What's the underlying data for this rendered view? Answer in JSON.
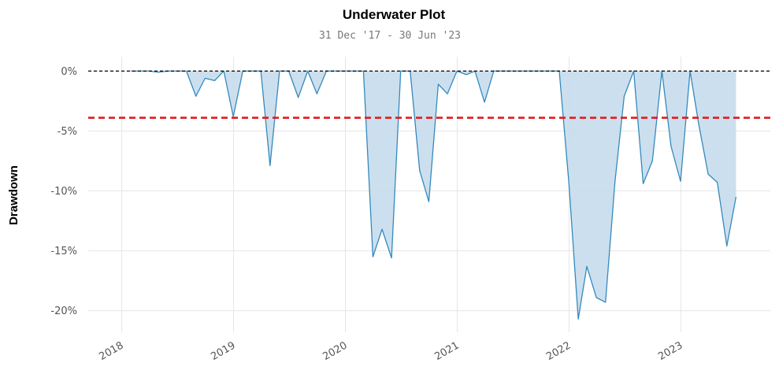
{
  "chart_data": {
    "type": "area",
    "title": "Underwater Plot",
    "subtitle": "31 Dec '17 - 30 Jun '23",
    "xlabel": "",
    "ylabel": "Drawdown",
    "ylim": [
      -21.8,
      1.2
    ],
    "xlim": [
      2017.7,
      2023.8
    ],
    "yticks": [
      0,
      -5,
      -10,
      -15,
      -20
    ],
    "ytick_labels": [
      "0%",
      "-5%",
      "-10%",
      "-15%",
      "-20%"
    ],
    "xticks": [
      2018,
      2019,
      2020,
      2021,
      2022,
      2023
    ],
    "xtick_labels": [
      "2018",
      "2019",
      "2020",
      "2021",
      "2022",
      "2023"
    ],
    "grid": true,
    "reference_lines": [
      {
        "y": 0,
        "style": "dashed",
        "color": "#000000"
      },
      {
        "y": -3.9,
        "style": "dashed",
        "color": "#e41a1c"
      }
    ],
    "colors": {
      "line": "#348abd",
      "fill": "#c6dcec"
    },
    "series": [
      {
        "x": [
          "2018-01-31",
          "2018-02-28",
          "2018-03-31",
          "2018-04-30",
          "2018-05-31",
          "2018-06-30",
          "2018-07-31",
          "2018-08-31",
          "2018-09-30",
          "2018-10-31",
          "2018-11-30",
          "2018-12-31",
          "2019-01-31",
          "2019-02-28",
          "2019-03-31",
          "2019-04-30",
          "2019-05-31",
          "2019-06-30",
          "2019-07-31",
          "2019-08-31",
          "2019-09-30",
          "2019-10-31",
          "2019-11-30",
          "2019-12-31",
          "2020-01-31",
          "2020-02-29",
          "2020-03-31",
          "2020-04-30",
          "2020-05-31",
          "2020-06-30",
          "2020-07-31",
          "2020-08-31",
          "2020-09-30",
          "2020-10-31",
          "2020-11-30",
          "2020-12-31",
          "2021-01-31",
          "2021-02-28",
          "2021-03-31",
          "2021-04-30",
          "2021-05-31",
          "2021-06-30",
          "2021-07-31",
          "2021-08-31",
          "2021-09-30",
          "2021-10-31",
          "2021-11-30",
          "2021-12-31",
          "2022-01-31",
          "2022-02-28",
          "2022-03-31",
          "2022-04-30",
          "2022-05-31",
          "2022-06-30",
          "2022-07-31",
          "2022-08-31",
          "2022-09-30",
          "2022-10-31",
          "2022-11-30",
          "2022-12-31",
          "2023-01-31",
          "2023-02-28",
          "2023-03-31",
          "2023-04-30",
          "2023-05-31",
          "2023-06-30"
        ],
        "values": [
          0,
          0,
          0,
          -0.1,
          0,
          0,
          0,
          -2.1,
          -0.6,
          -0.8,
          0,
          -3.8,
          0,
          0,
          0,
          -7.9,
          0,
          0,
          -2.2,
          0,
          -1.9,
          0,
          0,
          0,
          0,
          0,
          -15.5,
          -13.2,
          -15.6,
          0,
          0,
          -8.3,
          -10.9,
          -1.1,
          -1.9,
          0,
          -0.3,
          0,
          -2.6,
          0,
          0,
          0,
          0,
          0,
          0,
          0,
          0,
          -9.2,
          -20.7,
          -16.3,
          -18.9,
          -19.3,
          -9.2,
          -2.1,
          0,
          -9.4,
          -7.5,
          0,
          -6.3,
          -9.2,
          0,
          -4.4,
          -8.6,
          -9.3,
          -14.6,
          -10.5
        ]
      }
    ]
  }
}
